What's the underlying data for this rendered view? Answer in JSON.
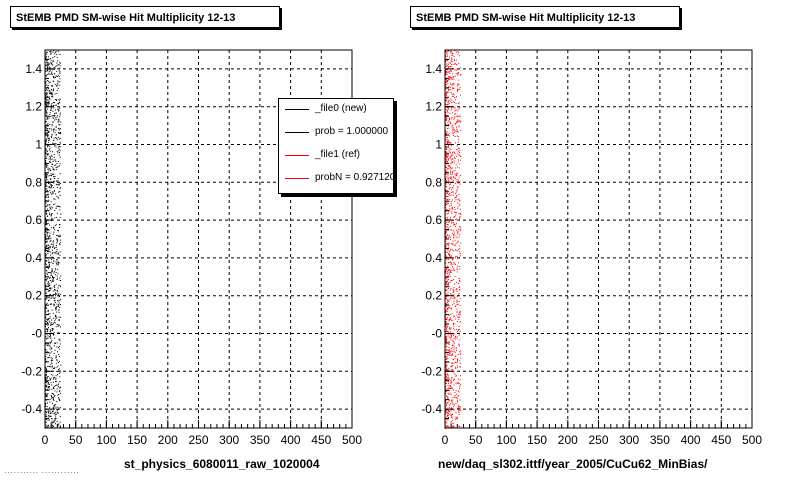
{
  "chart_data": [
    {
      "type": "scatter",
      "title": "StEMB PMD SM-wise Hit Multiplicity 12-13",
      "xlabel": "st_physics_6080011_raw_1020004",
      "ylabel": "",
      "xlim": [
        0,
        500
      ],
      "ylim": [
        -0.5,
        1.5
      ],
      "xticks": [
        "0",
        "50",
        "100",
        "150",
        "200",
        "250",
        "300",
        "350",
        "400",
        "450",
        "500"
      ],
      "yticks": [
        "-0.4",
        "-0.2",
        "-0",
        "0.2",
        "0.4",
        "0.6",
        "0.8",
        "1",
        "1.2",
        "1.4"
      ],
      "grid": true,
      "legend_position": "top-right",
      "series": [
        {
          "name": "_file0 (new)",
          "color": "#000000",
          "x_range": [
            0,
            25
          ],
          "y_range": [
            -0.5,
            1.5
          ]
        }
      ]
    },
    {
      "type": "scatter",
      "title": "StEMB PMD SM-wise Hit Multiplicity 12-13",
      "xlabel": "new/daq_sl302.ittf/year_2005/CuCu62_MinBias/",
      "ylabel": "",
      "xlim": [
        0,
        500
      ],
      "ylim": [
        -0.5,
        1.5
      ],
      "xticks": [
        "0",
        "50",
        "100",
        "150",
        "200",
        "250",
        "300",
        "350",
        "400",
        "450",
        "500"
      ],
      "yticks": [
        "-0.4",
        "-0.2",
        "-0",
        "0.2",
        "0.4",
        "0.6",
        "0.8",
        "1",
        "1.2",
        "1.4"
      ],
      "grid": true,
      "series": [
        {
          "name": "_file1 (ref)",
          "color": "#ff0000",
          "x_range": [
            0,
            25
          ],
          "y_range": [
            -0.5,
            1.5
          ]
        }
      ]
    }
  ],
  "legend": {
    "entries": [
      {
        "label": "_file0 (new)",
        "color": "#000000"
      },
      {
        "label": "prob = 1.000000",
        "color": "#000000"
      },
      {
        "label": "_file1 (ref)",
        "color": "#ff0000"
      },
      {
        "label": "probN = 0.927120",
        "color": "#ff0000"
      }
    ]
  },
  "footer": "··········· ············"
}
